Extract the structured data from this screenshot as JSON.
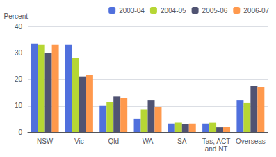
{
  "chart_data": {
    "type": "bar",
    "ylabel": "Percent",
    "categories": [
      "NSW",
      "Vic",
      "Qld",
      "WA",
      "SA",
      "Tas, ACT\nand NT",
      "Overseas"
    ],
    "series": [
      {
        "name": "2003-04",
        "values": [
          33.5,
          33.0,
          10.0,
          5.0,
          3.2,
          3.2,
          12.0
        ]
      },
      {
        "name": "2004-05",
        "values": [
          33.0,
          28.0,
          11.5,
          8.5,
          3.5,
          3.5,
          11.0
        ]
      },
      {
        "name": "2005-06",
        "values": [
          30.0,
          21.0,
          13.5,
          12.0,
          3.0,
          1.8,
          17.5
        ]
      },
      {
        "name": "2006-07",
        "values": [
          33.0,
          21.5,
          13.0,
          9.5,
          3.2,
          2.0,
          17.0
        ]
      }
    ],
    "ylim": [
      0,
      40
    ],
    "yticks": [
      0,
      10,
      20,
      30,
      40
    ],
    "grid": true,
    "legend": "upper right"
  }
}
